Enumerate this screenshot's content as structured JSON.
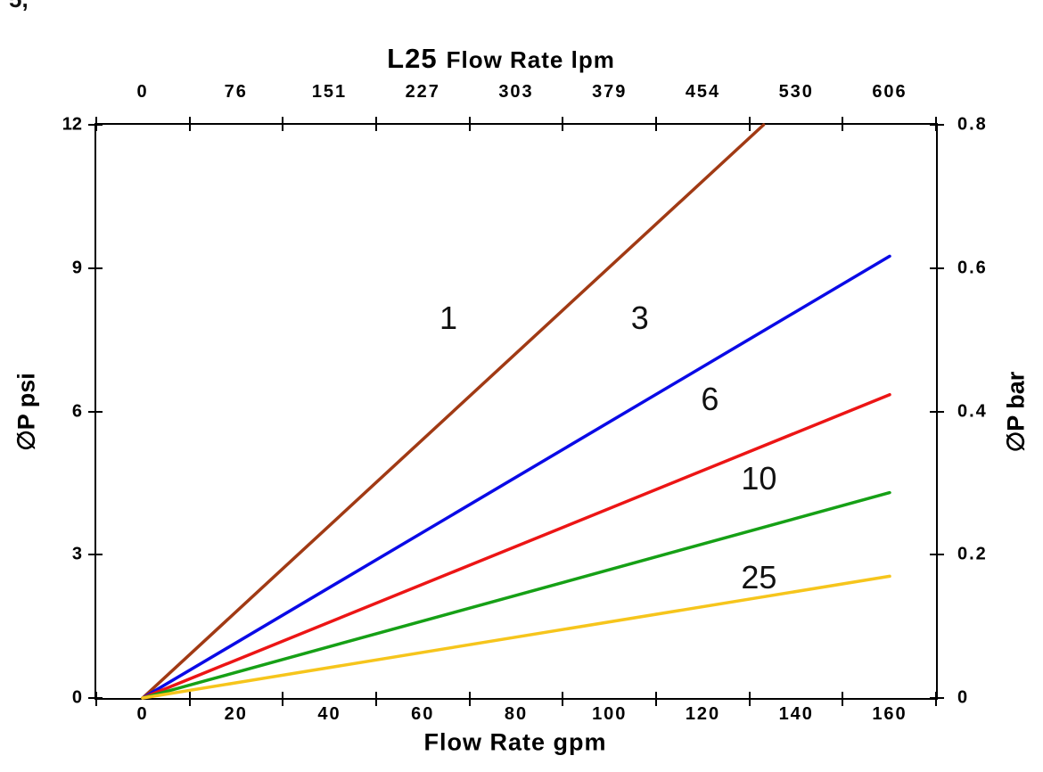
{
  "artifact_text": "5,",
  "chart_data": {
    "type": "line",
    "title_model": "L25",
    "title_top_axis": "Flow Rate lpm",
    "xlabel_bottom": "Flow Rate gpm",
    "ylabel_left": "∅P psi",
    "ylabel_right": "∅P bar",
    "x_axis_bottom_units": "gpm",
    "x_axis_top_units": "lpm",
    "x_tick_positions_gpm": [
      0,
      20,
      40,
      60,
      80,
      100,
      120,
      140,
      160
    ],
    "x_top_labels": [
      "0",
      "76",
      "151",
      "227",
      "303",
      "379",
      "454",
      "530",
      "606"
    ],
    "x_bottom_labels": [
      "0",
      "20",
      "40",
      "60",
      "80",
      "100",
      "120",
      "140",
      "160"
    ],
    "y_left_labels": [
      "0",
      "3",
      "6",
      "9",
      "12"
    ],
    "y_right_labels": [
      "0",
      "0.2",
      "0.4",
      "0.6",
      "0.8"
    ],
    "x_range_gpm": [
      0,
      160
    ],
    "y_range_psi": [
      0,
      12
    ],
    "grid": false,
    "legend": "inline-labels",
    "series": [
      {
        "name": "1",
        "color": "#A13A14",
        "points_gpm_psi": [
          [
            0,
            0
          ],
          [
            133,
            12
          ]
        ],
        "label_at_gpm_psi": [
          65.5,
          7.95
        ]
      },
      {
        "name": "3",
        "color": "#0A0AE6",
        "points_gpm_psi": [
          [
            0,
            0
          ],
          [
            160,
            9.25
          ]
        ],
        "label_at_gpm_psi": [
          106.5,
          7.95
        ]
      },
      {
        "name": "6",
        "color": "#EC1515",
        "points_gpm_psi": [
          [
            0,
            0
          ],
          [
            160,
            6.35
          ]
        ],
        "label_at_gpm_psi": [
          121.5,
          6.25
        ]
      },
      {
        "name": "10",
        "color": "#16A016",
        "points_gpm_psi": [
          [
            0,
            0
          ],
          [
            160,
            4.3
          ]
        ],
        "label_at_gpm_psi": [
          132,
          4.6
        ]
      },
      {
        "name": "25",
        "color": "#F6C51C",
        "points_gpm_psi": [
          [
            0,
            0
          ],
          [
            160,
            2.55
          ]
        ],
        "label_at_gpm_psi": [
          132,
          2.52
        ]
      }
    ]
  }
}
